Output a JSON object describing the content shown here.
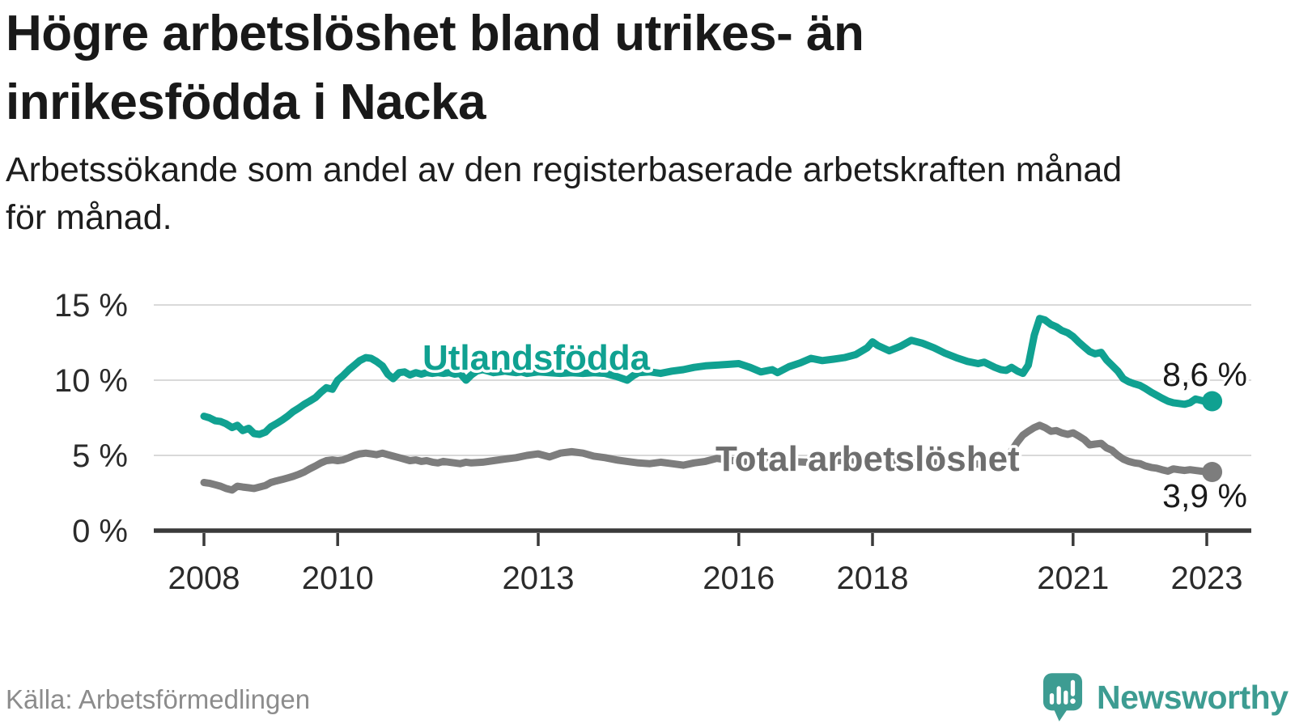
{
  "header": {
    "title_line1": "Högre arbetslöshet bland utrikes- än",
    "title_line2": "inrikesfödda i Nacka",
    "subtitle_line1": "Arbetssökande som andel av den registerbaserade arbetskraften månad",
    "subtitle_line2": "för månad."
  },
  "footer": {
    "source": "Källa: Arbetsförmedlingen",
    "brand": "Newsworthy",
    "logo_icon": "newsworthy-speech-bubble-bar-chart-icon"
  },
  "colors": {
    "accent_teal": "#10a191",
    "line_total_gray": "#7d7d7d",
    "series_label_total": "#6e6e6e",
    "value_label": "#1a1a1a",
    "brand_teal": "#3d9c92",
    "grid": "#d9d9d9",
    "axis": "#3a3a3a",
    "title_text": "#191919",
    "source_text": "#8c8c8c"
  },
  "chart_data": {
    "type": "line",
    "title": "Högre arbetslöshet bland utrikes- än inrikesfödda i Nacka",
    "subtitle": "Arbetssökande som andel av den registerbaserade arbetskraften månad för månad.",
    "xlabel": "",
    "ylabel": "",
    "grid": "horizontal",
    "legend_position": "inline-labels",
    "x_axis": {
      "ticks": [
        2008,
        2010,
        2013,
        2016,
        2018,
        2021,
        2023
      ],
      "labels": [
        "2008",
        "2010",
        "2013",
        "2016",
        "2018",
        "2021",
        "2023"
      ],
      "range": [
        2007.25,
        2023.6
      ]
    },
    "y_axis": {
      "ticks": [
        0,
        5,
        10,
        15
      ],
      "labels": [
        "0 %",
        "5 %",
        "10 %",
        "15 %"
      ],
      "gridlines": [
        5,
        10,
        15
      ],
      "range": [
        0,
        16.5
      ]
    },
    "series": [
      {
        "name": "Utlandsfödda",
        "color": "#10a191",
        "end_value": 8.6,
        "end_label": "8,6 %",
        "points": [
          [
            2008.0,
            7.6
          ],
          [
            2008.08,
            7.5
          ],
          [
            2008.17,
            7.3
          ],
          [
            2008.25,
            7.25
          ],
          [
            2008.33,
            7.1
          ],
          [
            2008.42,
            6.85
          ],
          [
            2008.5,
            7.0
          ],
          [
            2008.58,
            6.65
          ],
          [
            2008.67,
            6.8
          ],
          [
            2008.75,
            6.45
          ],
          [
            2008.83,
            6.4
          ],
          [
            2008.92,
            6.55
          ],
          [
            2009.0,
            6.9
          ],
          [
            2009.08,
            7.1
          ],
          [
            2009.17,
            7.35
          ],
          [
            2009.25,
            7.6
          ],
          [
            2009.33,
            7.9
          ],
          [
            2009.42,
            8.15
          ],
          [
            2009.5,
            8.4
          ],
          [
            2009.58,
            8.6
          ],
          [
            2009.67,
            8.85
          ],
          [
            2009.75,
            9.2
          ],
          [
            2009.83,
            9.5
          ],
          [
            2009.92,
            9.4
          ],
          [
            2010.0,
            10.0
          ],
          [
            2010.08,
            10.3
          ],
          [
            2010.17,
            10.7
          ],
          [
            2010.25,
            11.0
          ],
          [
            2010.33,
            11.3
          ],
          [
            2010.42,
            11.5
          ],
          [
            2010.5,
            11.45
          ],
          [
            2010.58,
            11.25
          ],
          [
            2010.67,
            10.95
          ],
          [
            2010.75,
            10.4
          ],
          [
            2010.83,
            10.1
          ],
          [
            2010.92,
            10.5
          ],
          [
            2011.0,
            10.55
          ],
          [
            2011.08,
            10.35
          ],
          [
            2011.17,
            10.5
          ],
          [
            2011.25,
            10.4
          ],
          [
            2011.33,
            10.5
          ],
          [
            2011.42,
            10.45
          ],
          [
            2011.5,
            10.5
          ],
          [
            2011.58,
            10.45
          ],
          [
            2011.67,
            10.5
          ],
          [
            2011.75,
            10.4
          ],
          [
            2011.83,
            10.45
          ],
          [
            2011.92,
            10.0
          ],
          [
            2012.0,
            10.35
          ],
          [
            2012.08,
            10.6
          ],
          [
            2012.17,
            10.7
          ],
          [
            2012.25,
            10.6
          ],
          [
            2012.33,
            10.5
          ],
          [
            2012.42,
            10.55
          ],
          [
            2012.5,
            10.6
          ],
          [
            2012.58,
            10.55
          ],
          [
            2012.67,
            10.5
          ],
          [
            2012.75,
            10.55
          ],
          [
            2012.83,
            10.45
          ],
          [
            2012.92,
            10.5
          ],
          [
            2013.0,
            10.55
          ],
          [
            2013.17,
            10.5
          ],
          [
            2013.33,
            10.45
          ],
          [
            2013.5,
            10.5
          ],
          [
            2013.67,
            10.45
          ],
          [
            2013.83,
            10.5
          ],
          [
            2014.0,
            10.45
          ],
          [
            2014.17,
            10.25
          ],
          [
            2014.33,
            10.0
          ],
          [
            2014.42,
            10.3
          ],
          [
            2014.5,
            10.5
          ],
          [
            2014.67,
            10.55
          ],
          [
            2014.83,
            10.45
          ],
          [
            2015.0,
            10.6
          ],
          [
            2015.17,
            10.7
          ],
          [
            2015.33,
            10.85
          ],
          [
            2015.5,
            10.95
          ],
          [
            2015.67,
            11.0
          ],
          [
            2015.83,
            11.05
          ],
          [
            2016.0,
            11.1
          ],
          [
            2016.17,
            10.85
          ],
          [
            2016.33,
            10.55
          ],
          [
            2016.5,
            10.7
          ],
          [
            2016.58,
            10.5
          ],
          [
            2016.75,
            10.9
          ],
          [
            2016.92,
            11.15
          ],
          [
            2017.08,
            11.45
          ],
          [
            2017.25,
            11.3
          ],
          [
            2017.42,
            11.4
          ],
          [
            2017.58,
            11.5
          ],
          [
            2017.75,
            11.7
          ],
          [
            2017.92,
            12.15
          ],
          [
            2018.0,
            12.55
          ],
          [
            2018.08,
            12.3
          ],
          [
            2018.25,
            11.95
          ],
          [
            2018.42,
            12.25
          ],
          [
            2018.58,
            12.65
          ],
          [
            2018.75,
            12.45
          ],
          [
            2018.92,
            12.15
          ],
          [
            2019.08,
            11.8
          ],
          [
            2019.25,
            11.5
          ],
          [
            2019.42,
            11.25
          ],
          [
            2019.58,
            11.1
          ],
          [
            2019.67,
            11.2
          ],
          [
            2019.83,
            10.85
          ],
          [
            2019.92,
            10.7
          ],
          [
            2020.0,
            10.65
          ],
          [
            2020.08,
            10.85
          ],
          [
            2020.17,
            10.6
          ],
          [
            2020.25,
            10.45
          ],
          [
            2020.33,
            11.0
          ],
          [
            2020.42,
            13.0
          ],
          [
            2020.5,
            14.1
          ],
          [
            2020.58,
            14.0
          ],
          [
            2020.67,
            13.7
          ],
          [
            2020.75,
            13.55
          ],
          [
            2020.83,
            13.3
          ],
          [
            2020.92,
            13.15
          ],
          [
            2021.0,
            12.9
          ],
          [
            2021.08,
            12.55
          ],
          [
            2021.17,
            12.2
          ],
          [
            2021.25,
            11.9
          ],
          [
            2021.33,
            11.75
          ],
          [
            2021.42,
            11.85
          ],
          [
            2021.5,
            11.35
          ],
          [
            2021.58,
            11.0
          ],
          [
            2021.67,
            10.6
          ],
          [
            2021.75,
            10.1
          ],
          [
            2021.83,
            9.9
          ],
          [
            2021.92,
            9.75
          ],
          [
            2022.0,
            9.65
          ],
          [
            2022.08,
            9.45
          ],
          [
            2022.17,
            9.2
          ],
          [
            2022.25,
            9.0
          ],
          [
            2022.33,
            8.8
          ],
          [
            2022.42,
            8.6
          ],
          [
            2022.5,
            8.5
          ],
          [
            2022.58,
            8.45
          ],
          [
            2022.67,
            8.4
          ],
          [
            2022.75,
            8.5
          ],
          [
            2022.83,
            8.75
          ],
          [
            2022.92,
            8.65
          ],
          [
            2023.0,
            8.55
          ],
          [
            2023.08,
            8.6
          ]
        ]
      },
      {
        "name": "Total arbetslöshet",
        "color": "#7d7d7d",
        "end_value": 3.9,
        "end_label": "3,9 %",
        "points": [
          [
            2008.0,
            3.2
          ],
          [
            2008.08,
            3.15
          ],
          [
            2008.17,
            3.05
          ],
          [
            2008.25,
            2.95
          ],
          [
            2008.33,
            2.8
          ],
          [
            2008.42,
            2.7
          ],
          [
            2008.5,
            2.95
          ],
          [
            2008.58,
            2.9
          ],
          [
            2008.67,
            2.85
          ],
          [
            2008.75,
            2.8
          ],
          [
            2008.83,
            2.9
          ],
          [
            2008.92,
            3.0
          ],
          [
            2009.0,
            3.2
          ],
          [
            2009.08,
            3.3
          ],
          [
            2009.17,
            3.4
          ],
          [
            2009.25,
            3.5
          ],
          [
            2009.33,
            3.6
          ],
          [
            2009.42,
            3.75
          ],
          [
            2009.5,
            3.9
          ],
          [
            2009.58,
            4.1
          ],
          [
            2009.67,
            4.3
          ],
          [
            2009.75,
            4.5
          ],
          [
            2009.83,
            4.65
          ],
          [
            2009.92,
            4.7
          ],
          [
            2010.0,
            4.65
          ],
          [
            2010.08,
            4.7
          ],
          [
            2010.17,
            4.85
          ],
          [
            2010.25,
            5.0
          ],
          [
            2010.33,
            5.1
          ],
          [
            2010.42,
            5.15
          ],
          [
            2010.5,
            5.1
          ],
          [
            2010.58,
            5.05
          ],
          [
            2010.67,
            5.15
          ],
          [
            2010.75,
            5.05
          ],
          [
            2010.83,
            4.95
          ],
          [
            2010.92,
            4.85
          ],
          [
            2011.0,
            4.75
          ],
          [
            2011.08,
            4.65
          ],
          [
            2011.17,
            4.7
          ],
          [
            2011.25,
            4.6
          ],
          [
            2011.33,
            4.65
          ],
          [
            2011.42,
            4.55
          ],
          [
            2011.5,
            4.5
          ],
          [
            2011.58,
            4.6
          ],
          [
            2011.67,
            4.55
          ],
          [
            2011.75,
            4.5
          ],
          [
            2011.83,
            4.45
          ],
          [
            2011.92,
            4.55
          ],
          [
            2012.0,
            4.5
          ],
          [
            2012.17,
            4.55
          ],
          [
            2012.33,
            4.65
          ],
          [
            2012.5,
            4.75
          ],
          [
            2012.67,
            4.85
          ],
          [
            2012.83,
            5.0
          ],
          [
            2013.0,
            5.1
          ],
          [
            2013.17,
            4.9
          ],
          [
            2013.33,
            5.15
          ],
          [
            2013.5,
            5.25
          ],
          [
            2013.67,
            5.15
          ],
          [
            2013.83,
            4.95
          ],
          [
            2014.0,
            4.85
          ],
          [
            2014.17,
            4.7
          ],
          [
            2014.33,
            4.6
          ],
          [
            2014.5,
            4.5
          ],
          [
            2014.67,
            4.45
          ],
          [
            2014.83,
            4.55
          ],
          [
            2015.0,
            4.45
          ],
          [
            2015.17,
            4.35
          ],
          [
            2015.33,
            4.5
          ],
          [
            2015.5,
            4.6
          ],
          [
            2015.67,
            4.8
          ],
          [
            2015.83,
            4.7
          ],
          [
            2016.0,
            4.6
          ],
          [
            2016.25,
            4.5
          ],
          [
            2016.5,
            4.55
          ],
          [
            2016.75,
            4.6
          ],
          [
            2017.0,
            4.55
          ],
          [
            2017.25,
            4.6
          ],
          [
            2017.5,
            4.65
          ],
          [
            2017.75,
            4.7
          ],
          [
            2018.0,
            4.75
          ],
          [
            2018.25,
            4.7
          ],
          [
            2018.5,
            4.6
          ],
          [
            2018.75,
            4.55
          ],
          [
            2019.0,
            4.5
          ],
          [
            2019.25,
            4.45
          ],
          [
            2019.5,
            4.4
          ],
          [
            2019.75,
            4.5
          ],
          [
            2019.92,
            4.65
          ],
          [
            2020.08,
            5.3
          ],
          [
            2020.17,
            5.9
          ],
          [
            2020.25,
            6.35
          ],
          [
            2020.33,
            6.6
          ],
          [
            2020.42,
            6.85
          ],
          [
            2020.5,
            7.0
          ],
          [
            2020.58,
            6.85
          ],
          [
            2020.67,
            6.6
          ],
          [
            2020.75,
            6.65
          ],
          [
            2020.83,
            6.5
          ],
          [
            2020.92,
            6.4
          ],
          [
            2021.0,
            6.5
          ],
          [
            2021.08,
            6.3
          ],
          [
            2021.17,
            6.05
          ],
          [
            2021.25,
            5.7
          ],
          [
            2021.33,
            5.75
          ],
          [
            2021.42,
            5.8
          ],
          [
            2021.5,
            5.5
          ],
          [
            2021.58,
            5.35
          ],
          [
            2021.67,
            5.0
          ],
          [
            2021.75,
            4.75
          ],
          [
            2021.83,
            4.6
          ],
          [
            2021.92,
            4.5
          ],
          [
            2022.0,
            4.45
          ],
          [
            2022.08,
            4.3
          ],
          [
            2022.17,
            4.2
          ],
          [
            2022.25,
            4.15
          ],
          [
            2022.33,
            4.05
          ],
          [
            2022.42,
            3.95
          ],
          [
            2022.5,
            4.1
          ],
          [
            2022.58,
            4.05
          ],
          [
            2022.67,
            4.0
          ],
          [
            2022.75,
            4.05
          ],
          [
            2022.83,
            4.0
          ],
          [
            2022.92,
            3.95
          ],
          [
            2023.0,
            3.92
          ],
          [
            2023.08,
            3.9
          ]
        ]
      }
    ]
  }
}
